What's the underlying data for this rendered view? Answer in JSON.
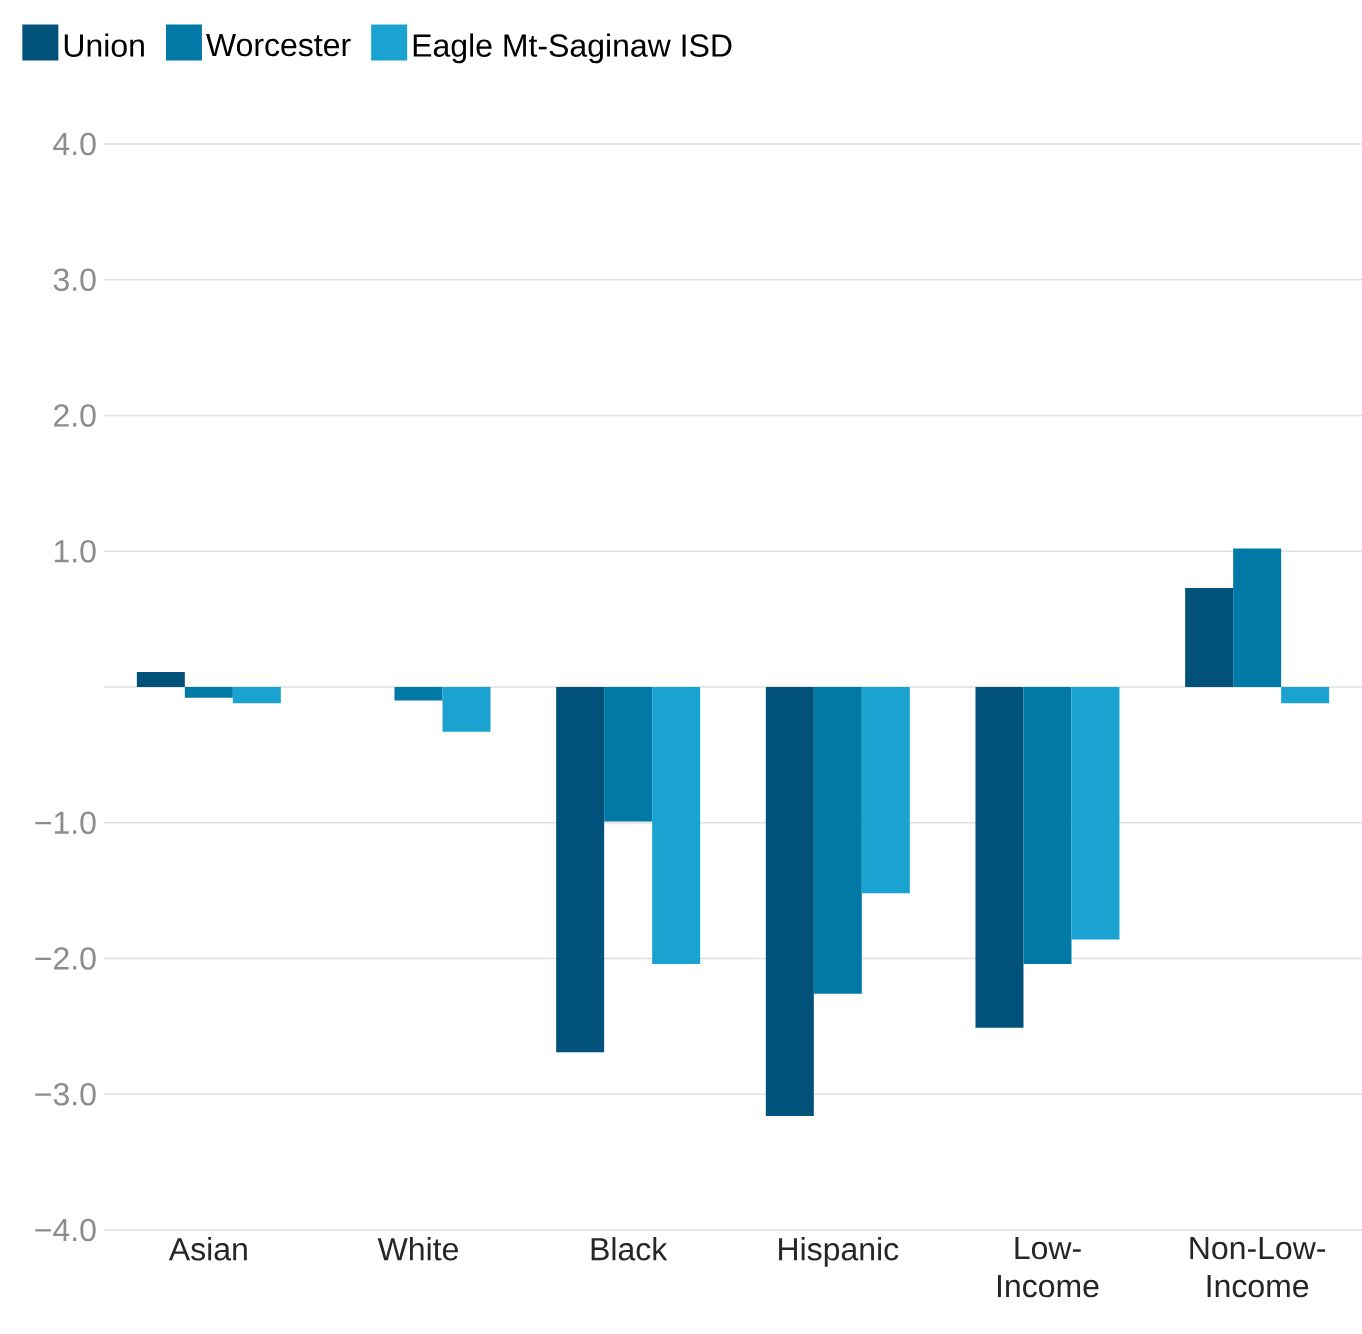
{
  "chart_data": {
    "type": "bar",
    "categories": [
      "Asian",
      "White",
      "Black",
      "Hispanic",
      "Low-Income",
      "Non-Low-Income"
    ],
    "series": [
      {
        "name": "Union",
        "color": "#00527a",
        "values": [
          0.11,
          null,
          -2.69,
          -3.16,
          -2.51,
          0.73
        ]
      },
      {
        "name": "Worcester",
        "color": "#0079a6",
        "values": [
          -0.08,
          -0.1,
          -0.99,
          -2.26,
          -2.04,
          1.02
        ]
      },
      {
        "name": "Eagle Mt-Saginaw ISD",
        "color": "#1aa3d1",
        "values": [
          -0.12,
          -0.33,
          -2.04,
          -1.52,
          -1.86,
          -0.12
        ]
      }
    ],
    "ylim": [
      -4.0,
      4.0
    ],
    "yticks": [
      {
        "value": -4,
        "label": "−4.0"
      },
      {
        "value": -3,
        "label": "−3.0"
      },
      {
        "value": -2,
        "label": "−2.0"
      },
      {
        "value": -1,
        "label": "−1.0"
      },
      {
        "value": 0,
        "label": null
      },
      {
        "value": 1,
        "label": "1.0"
      },
      {
        "value": 2,
        "label": "2.0"
      },
      {
        "value": 3,
        "label": "3.0"
      },
      {
        "value": 4,
        "label": "4.0"
      }
    ],
    "grid": "y",
    "legend": "top left"
  }
}
